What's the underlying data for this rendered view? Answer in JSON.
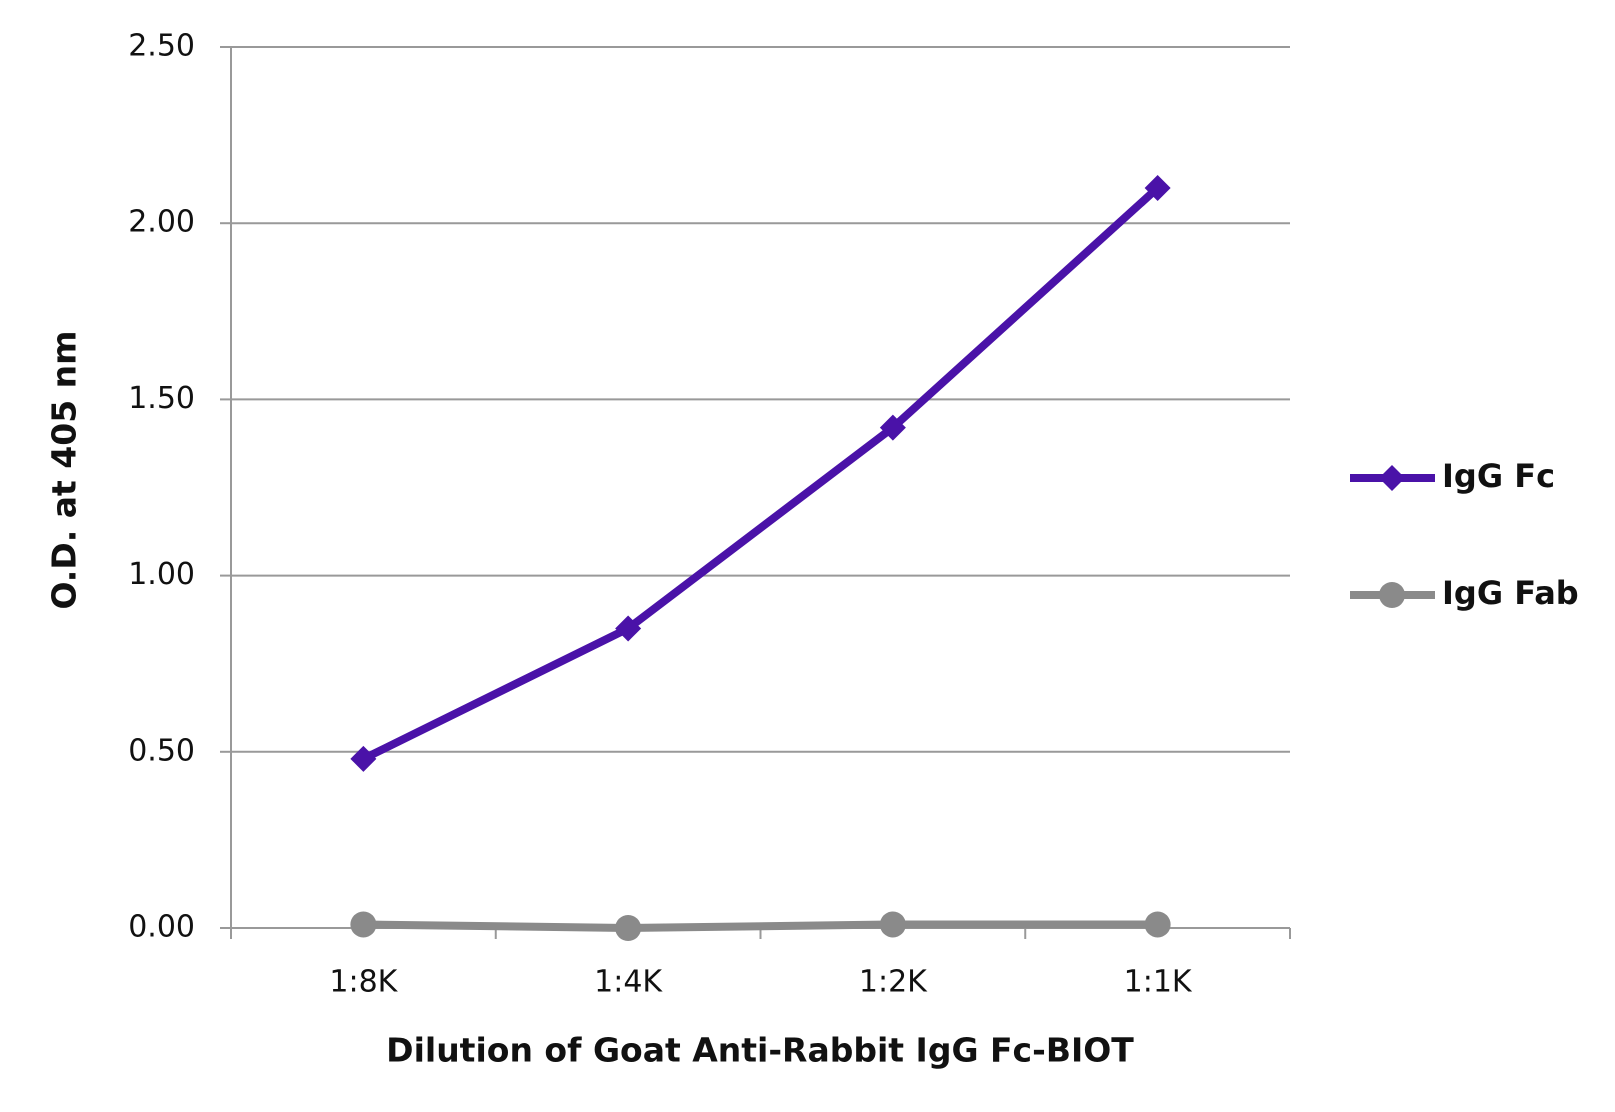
{
  "chart_data": {
    "type": "line",
    "x_label": "Dilution of Goat Anti-Rabbit IgG Fc-BIOT",
    "y_label": "O.D. at 405 nm",
    "categories": [
      "1:8K",
      "1:4K",
      "1:2K",
      "1:1K"
    ],
    "series": [
      {
        "name": "IgG Fc",
        "color": "#4a12a8",
        "marker": "diamond",
        "values": [
          0.48,
          0.85,
          1.42,
          2.1
        ]
      },
      {
        "name": "IgG Fab",
        "color": "#8a8a8a",
        "marker": "circle",
        "values": [
          0.01,
          0.0,
          0.01,
          0.01
        ]
      }
    ],
    "ylim": [
      0,
      2.5
    ],
    "yticks": [
      {
        "value": 0,
        "label": "0.00"
      },
      {
        "value": 0.5,
        "label": "0.50"
      },
      {
        "value": 1,
        "label": "1.00"
      },
      {
        "value": 1.5,
        "label": "1.50"
      },
      {
        "value": 2,
        "label": "2.00"
      },
      {
        "value": 2.5,
        "label": "2.50"
      }
    ],
    "grid": true,
    "legend": "right"
  }
}
